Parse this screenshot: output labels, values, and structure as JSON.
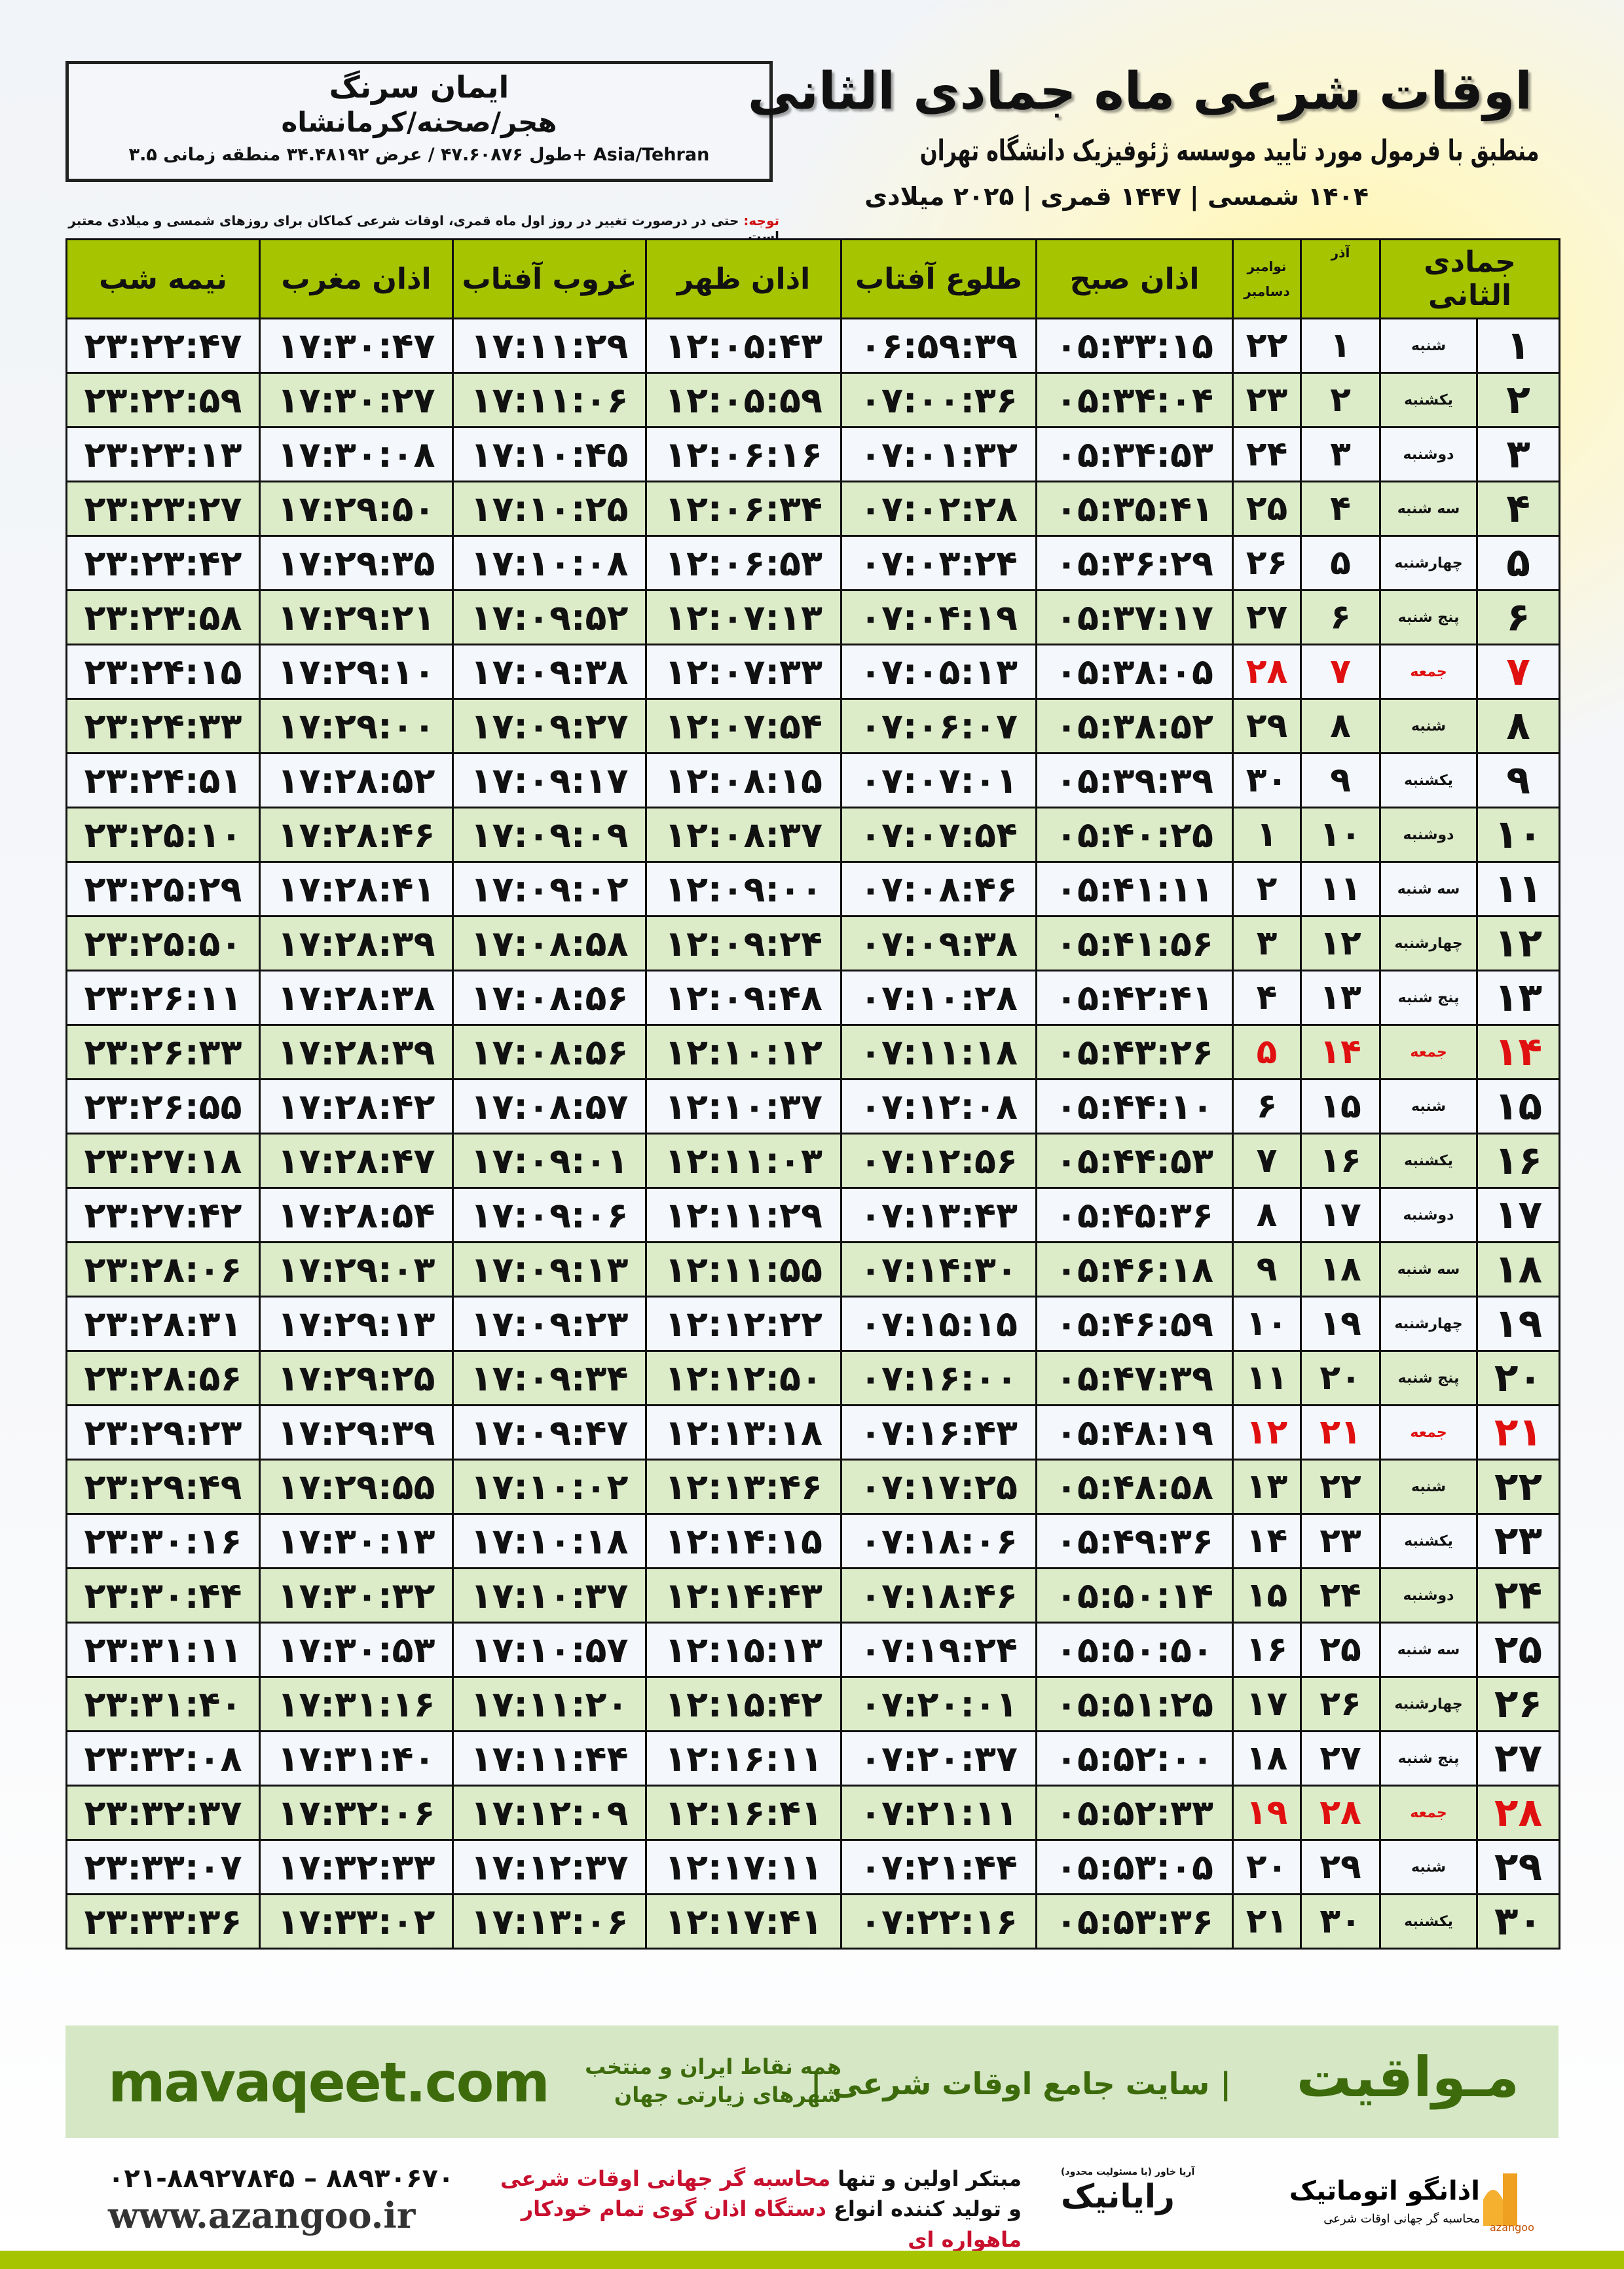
{
  "header": {
    "title": "اوقات شرعی ماه جمادی الثانی",
    "subtitle": "منطبق با فرمول مورد تایید موسسه ژئوفیزیک دانشگاه تهران",
    "years": "۱۴۰۴ شمسی | ۱۴۴۷ قمری | ۲۰۲۵ میلادی",
    "name": "ایمان سرنگ",
    "place": "هجر/صحنه/کرمانشاه",
    "coords": "طول ۴۷.۶۰۸۷۶ / عرض ۳۴.۴۸۱۹۲ منطقه زمانی ۳.۵+ Asia/Tehran",
    "note_label": "توجه:",
    "note_text": " حتی در درصورت تغییر در روز اول ماه قمری، اوقات شرعی کماکان برای روزهای شمسی و میلادی معتبر است."
  },
  "colors": {
    "header_green": "#a7c400",
    "row_green": "#dcebc8",
    "holiday_red": "#e01010",
    "brand_green": "#3d6b0c"
  },
  "table": {
    "columns": {
      "hijri": "جمادی الثانی",
      "azar": "آذر",
      "gregorian_top": "نوامبر",
      "gregorian_bottom": "دسامبر",
      "sobh": "اذان صبح",
      "tolu": "طلوع آفتاب",
      "zohr": "اذان ظهر",
      "ghorub": "غروب آفتاب",
      "maghrib": "اذان مغرب",
      "nime": "نیمه شب"
    },
    "rows": [
      {
        "hijri": "۱",
        "weekday": "شنبه",
        "azar": "۱",
        "greg": "۲۲",
        "sobh": "۰۵:۳۳:۱۵",
        "tolu": "۰۶:۵۹:۳۹",
        "zohr": "۱۲:۰۵:۴۳",
        "ghorub": "۱۷:۱۱:۲۹",
        "maghrib": "۱۷:۳۰:۴۷",
        "nime": "۲۳:۲۲:۴۷",
        "holiday": false
      },
      {
        "hijri": "۲",
        "weekday": "یکشنبه",
        "azar": "۲",
        "greg": "۲۳",
        "sobh": "۰۵:۳۴:۰۴",
        "tolu": "۰۷:۰۰:۳۶",
        "zohr": "۱۲:۰۵:۵۹",
        "ghorub": "۱۷:۱۱:۰۶",
        "maghrib": "۱۷:۳۰:۲۷",
        "nime": "۲۳:۲۲:۵۹",
        "holiday": false
      },
      {
        "hijri": "۳",
        "weekday": "دوشنبه",
        "azar": "۳",
        "greg": "۲۴",
        "sobh": "۰۵:۳۴:۵۳",
        "tolu": "۰۷:۰۱:۳۲",
        "zohr": "۱۲:۰۶:۱۶",
        "ghorub": "۱۷:۱۰:۴۵",
        "maghrib": "۱۷:۳۰:۰۸",
        "nime": "۲۳:۲۳:۱۳",
        "holiday": false
      },
      {
        "hijri": "۴",
        "weekday": "سه شنبه",
        "azar": "۴",
        "greg": "۲۵",
        "sobh": "۰۵:۳۵:۴۱",
        "tolu": "۰۷:۰۲:۲۸",
        "zohr": "۱۲:۰۶:۳۴",
        "ghorub": "۱۷:۱۰:۲۵",
        "maghrib": "۱۷:۲۹:۵۰",
        "nime": "۲۳:۲۳:۲۷",
        "holiday": false
      },
      {
        "hijri": "۵",
        "weekday": "چهارشنبه",
        "azar": "۵",
        "greg": "۲۶",
        "sobh": "۰۵:۳۶:۲۹",
        "tolu": "۰۷:۰۳:۲۴",
        "zohr": "۱۲:۰۶:۵۳",
        "ghorub": "۱۷:۱۰:۰۸",
        "maghrib": "۱۷:۲۹:۳۵",
        "nime": "۲۳:۲۳:۴۲",
        "holiday": false
      },
      {
        "hijri": "۶",
        "weekday": "پنج شنبه",
        "azar": "۶",
        "greg": "۲۷",
        "sobh": "۰۵:۳۷:۱۷",
        "tolu": "۰۷:۰۴:۱۹",
        "zohr": "۱۲:۰۷:۱۳",
        "ghorub": "۱۷:۰۹:۵۲",
        "maghrib": "۱۷:۲۹:۲۱",
        "nime": "۲۳:۲۳:۵۸",
        "holiday": false
      },
      {
        "hijri": "۷",
        "weekday": "جمعه",
        "azar": "۷",
        "greg": "۲۸",
        "sobh": "۰۵:۳۸:۰۵",
        "tolu": "۰۷:۰۵:۱۳",
        "zohr": "۱۲:۰۷:۳۳",
        "ghorub": "۱۷:۰۹:۳۸",
        "maghrib": "۱۷:۲۹:۱۰",
        "nime": "۲۳:۲۴:۱۵",
        "holiday": true
      },
      {
        "hijri": "۸",
        "weekday": "شنبه",
        "azar": "۸",
        "greg": "۲۹",
        "sobh": "۰۵:۳۸:۵۲",
        "tolu": "۰۷:۰۶:۰۷",
        "zohr": "۱۲:۰۷:۵۴",
        "ghorub": "۱۷:۰۹:۲۷",
        "maghrib": "۱۷:۲۹:۰۰",
        "nime": "۲۳:۲۴:۳۳",
        "holiday": false
      },
      {
        "hijri": "۹",
        "weekday": "یکشنبه",
        "azar": "۹",
        "greg": "۳۰",
        "sobh": "۰۵:۳۹:۳۹",
        "tolu": "۰۷:۰۷:۰۱",
        "zohr": "۱۲:۰۸:۱۵",
        "ghorub": "۱۷:۰۹:۱۷",
        "maghrib": "۱۷:۲۸:۵۲",
        "nime": "۲۳:۲۴:۵۱",
        "holiday": false
      },
      {
        "hijri": "۱۰",
        "weekday": "دوشنبه",
        "azar": "۱۰",
        "greg": "۱",
        "sobh": "۰۵:۴۰:۲۵",
        "tolu": "۰۷:۰۷:۵۴",
        "zohr": "۱۲:۰۸:۳۷",
        "ghorub": "۱۷:۰۹:۰۹",
        "maghrib": "۱۷:۲۸:۴۶",
        "nime": "۲۳:۲۵:۱۰",
        "holiday": false
      },
      {
        "hijri": "۱۱",
        "weekday": "سه شنبه",
        "azar": "۱۱",
        "greg": "۲",
        "sobh": "۰۵:۴۱:۱۱",
        "tolu": "۰۷:۰۸:۴۶",
        "zohr": "۱۲:۰۹:۰۰",
        "ghorub": "۱۷:۰۹:۰۲",
        "maghrib": "۱۷:۲۸:۴۱",
        "nime": "۲۳:۲۵:۲۹",
        "holiday": false
      },
      {
        "hijri": "۱۲",
        "weekday": "چهارشنبه",
        "azar": "۱۲",
        "greg": "۳",
        "sobh": "۰۵:۴۱:۵۶",
        "tolu": "۰۷:۰۹:۳۸",
        "zohr": "۱۲:۰۹:۲۴",
        "ghorub": "۱۷:۰۸:۵۸",
        "maghrib": "۱۷:۲۸:۳۹",
        "nime": "۲۳:۲۵:۵۰",
        "holiday": false
      },
      {
        "hijri": "۱۳",
        "weekday": "پنج شنبه",
        "azar": "۱۳",
        "greg": "۴",
        "sobh": "۰۵:۴۲:۴۱",
        "tolu": "۰۷:۱۰:۲۸",
        "zohr": "۱۲:۰۹:۴۸",
        "ghorub": "۱۷:۰۸:۵۶",
        "maghrib": "۱۷:۲۸:۳۸",
        "nime": "۲۳:۲۶:۱۱",
        "holiday": false
      },
      {
        "hijri": "۱۴",
        "weekday": "جمعه",
        "azar": "۱۴",
        "greg": "۵",
        "sobh": "۰۵:۴۳:۲۶",
        "tolu": "۰۷:۱۱:۱۸",
        "zohr": "۱۲:۱۰:۱۲",
        "ghorub": "۱۷:۰۸:۵۶",
        "maghrib": "۱۷:۲۸:۳۹",
        "nime": "۲۳:۲۶:۳۳",
        "holiday": true
      },
      {
        "hijri": "۱۵",
        "weekday": "شنبه",
        "azar": "۱۵",
        "greg": "۶",
        "sobh": "۰۵:۴۴:۱۰",
        "tolu": "۰۷:۱۲:۰۸",
        "zohr": "۱۲:۱۰:۳۷",
        "ghorub": "۱۷:۰۸:۵۷",
        "maghrib": "۱۷:۲۸:۴۲",
        "nime": "۲۳:۲۶:۵۵",
        "holiday": false
      },
      {
        "hijri": "۱۶",
        "weekday": "یکشنبه",
        "azar": "۱۶",
        "greg": "۷",
        "sobh": "۰۵:۴۴:۵۳",
        "tolu": "۰۷:۱۲:۵۶",
        "zohr": "۱۲:۱۱:۰۳",
        "ghorub": "۱۷:۰۹:۰۱",
        "maghrib": "۱۷:۲۸:۴۷",
        "nime": "۲۳:۲۷:۱۸",
        "holiday": false
      },
      {
        "hijri": "۱۷",
        "weekday": "دوشنبه",
        "azar": "۱۷",
        "greg": "۸",
        "sobh": "۰۵:۴۵:۳۶",
        "tolu": "۰۷:۱۳:۴۳",
        "zohr": "۱۲:۱۱:۲۹",
        "ghorub": "۱۷:۰۹:۰۶",
        "maghrib": "۱۷:۲۸:۵۴",
        "nime": "۲۳:۲۷:۴۲",
        "holiday": false
      },
      {
        "hijri": "۱۸",
        "weekday": "سه شنبه",
        "azar": "۱۸",
        "greg": "۹",
        "sobh": "۰۵:۴۶:۱۸",
        "tolu": "۰۷:۱۴:۳۰",
        "zohr": "۱۲:۱۱:۵۵",
        "ghorub": "۱۷:۰۹:۱۳",
        "maghrib": "۱۷:۲۹:۰۳",
        "nime": "۲۳:۲۸:۰۶",
        "holiday": false
      },
      {
        "hijri": "۱۹",
        "weekday": "چهارشنبه",
        "azar": "۱۹",
        "greg": "۱۰",
        "sobh": "۰۵:۴۶:۵۹",
        "tolu": "۰۷:۱۵:۱۵",
        "zohr": "۱۲:۱۲:۲۲",
        "ghorub": "۱۷:۰۹:۲۳",
        "maghrib": "۱۷:۲۹:۱۳",
        "nime": "۲۳:۲۸:۳۱",
        "holiday": false
      },
      {
        "hijri": "۲۰",
        "weekday": "پنج شنبه",
        "azar": "۲۰",
        "greg": "۱۱",
        "sobh": "۰۵:۴۷:۳۹",
        "tolu": "۰۷:۱۶:۰۰",
        "zohr": "۱۲:۱۲:۵۰",
        "ghorub": "۱۷:۰۹:۳۴",
        "maghrib": "۱۷:۲۹:۲۵",
        "nime": "۲۳:۲۸:۵۶",
        "holiday": false
      },
      {
        "hijri": "۲۱",
        "weekday": "جمعه",
        "azar": "۲۱",
        "greg": "۱۲",
        "sobh": "۰۵:۴۸:۱۹",
        "tolu": "۰۷:۱۶:۴۳",
        "zohr": "۱۲:۱۳:۱۸",
        "ghorub": "۱۷:۰۹:۴۷",
        "maghrib": "۱۷:۲۹:۳۹",
        "nime": "۲۳:۲۹:۲۳",
        "holiday": true
      },
      {
        "hijri": "۲۲",
        "weekday": "شنبه",
        "azar": "۲۲",
        "greg": "۱۳",
        "sobh": "۰۵:۴۸:۵۸",
        "tolu": "۰۷:۱۷:۲۵",
        "zohr": "۱۲:۱۳:۴۶",
        "ghorub": "۱۷:۱۰:۰۲",
        "maghrib": "۱۷:۲۹:۵۵",
        "nime": "۲۳:۲۹:۴۹",
        "holiday": false
      },
      {
        "hijri": "۲۳",
        "weekday": "یکشنبه",
        "azar": "۲۳",
        "greg": "۱۴",
        "sobh": "۰۵:۴۹:۳۶",
        "tolu": "۰۷:۱۸:۰۶",
        "zohr": "۱۲:۱۴:۱۵",
        "ghorub": "۱۷:۱۰:۱۸",
        "maghrib": "۱۷:۳۰:۱۳",
        "nime": "۲۳:۳۰:۱۶",
        "holiday": false
      },
      {
        "hijri": "۲۴",
        "weekday": "دوشنبه",
        "azar": "۲۴",
        "greg": "۱۵",
        "sobh": "۰۵:۵۰:۱۴",
        "tolu": "۰۷:۱۸:۴۶",
        "zohr": "۱۲:۱۴:۴۳",
        "ghorub": "۱۷:۱۰:۳۷",
        "maghrib": "۱۷:۳۰:۳۲",
        "nime": "۲۳:۳۰:۴۴",
        "holiday": false
      },
      {
        "hijri": "۲۵",
        "weekday": "سه شنبه",
        "azar": "۲۵",
        "greg": "۱۶",
        "sobh": "۰۵:۵۰:۵۰",
        "tolu": "۰۷:۱۹:۲۴",
        "zohr": "۱۲:۱۵:۱۳",
        "ghorub": "۱۷:۱۰:۵۷",
        "maghrib": "۱۷:۳۰:۵۳",
        "nime": "۲۳:۳۱:۱۱",
        "holiday": false
      },
      {
        "hijri": "۲۶",
        "weekday": "چهارشنبه",
        "azar": "۲۶",
        "greg": "۱۷",
        "sobh": "۰۵:۵۱:۲۵",
        "tolu": "۰۷:۲۰:۰۱",
        "zohr": "۱۲:۱۵:۴۲",
        "ghorub": "۱۷:۱۱:۲۰",
        "maghrib": "۱۷:۳۱:۱۶",
        "nime": "۲۳:۳۱:۴۰",
        "holiday": false
      },
      {
        "hijri": "۲۷",
        "weekday": "پنج شنبه",
        "azar": "۲۷",
        "greg": "۱۸",
        "sobh": "۰۵:۵۲:۰۰",
        "tolu": "۰۷:۲۰:۳۷",
        "zohr": "۱۲:۱۶:۱۱",
        "ghorub": "۱۷:۱۱:۴۴",
        "maghrib": "۱۷:۳۱:۴۰",
        "nime": "۲۳:۳۲:۰۸",
        "holiday": false
      },
      {
        "hijri": "۲۸",
        "weekday": "جمعه",
        "azar": "۲۸",
        "greg": "۱۹",
        "sobh": "۰۵:۵۲:۳۳",
        "tolu": "۰۷:۲۱:۱۱",
        "zohr": "۱۲:۱۶:۴۱",
        "ghorub": "۱۷:۱۲:۰۹",
        "maghrib": "۱۷:۳۲:۰۶",
        "nime": "۲۳:۳۲:۳۷",
        "holiday": true
      },
      {
        "hijri": "۲۹",
        "weekday": "شنبه",
        "azar": "۲۹",
        "greg": "۲۰",
        "sobh": "۰۵:۵۳:۰۵",
        "tolu": "۰۷:۲۱:۴۴",
        "zohr": "۱۲:۱۷:۱۱",
        "ghorub": "۱۷:۱۲:۳۷",
        "maghrib": "۱۷:۳۲:۳۳",
        "nime": "۲۳:۳۳:۰۷",
        "holiday": false
      },
      {
        "hijri": "۳۰",
        "weekday": "یکشنبه",
        "azar": "۳۰",
        "greg": "۲۱",
        "sobh": "۰۵:۵۳:۳۶",
        "tolu": "۰۷:۲۲:۱۶",
        "zohr": "۱۲:۱۷:۴۱",
        "ghorub": "۱۷:۱۳:۰۶",
        "maghrib": "۱۷:۳۳:۰۲",
        "nime": "۲۳:۳۳:۳۶",
        "holiday": false
      }
    ]
  },
  "footer": {
    "brand": "مـواقیت",
    "tagline": "| سایت جامع اوقات شرعی |",
    "tag": "همه نقاط ایران و منتخب شهرهای زیارتی جهان",
    "site": "mavaqeet.com",
    "phones": "۰۲۱-۸۸۹۲۷۸۴۵ – ۸۸۹۳۰۶۷۰",
    "web": "www.azangoo.ir",
    "promo_1a": "مبتکر اولین و تنها ",
    "promo_1b": "محاسبه گر جهانی اوقات شرعی",
    "promo_2a": "و تولید کننده انواع ",
    "promo_2b": "دستگاه اذان گوی تمام خودکار ماهواره ای",
    "logo_rayanik": "رایانیک",
    "logo_rayanik_small": "(با مسئولیت محدود) آریا خاور",
    "logo_azangoo": "اذانگو اتوماتیک",
    "logo_azangoo_sub": "محاسبه گر جهانی اوقات شرعی",
    "logo_azangoo_latin": "azangoo"
  }
}
